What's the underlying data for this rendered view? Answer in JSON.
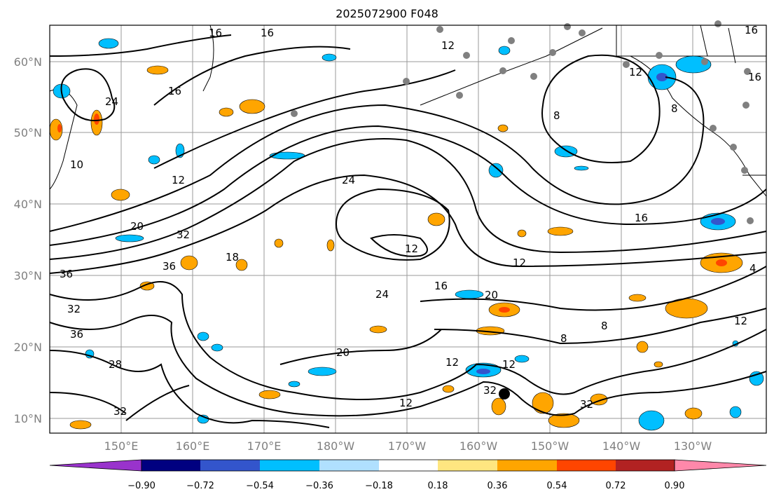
{
  "title": "2025072900 F048",
  "map": {
    "lat_labels": [
      "60°N",
      "50°N",
      "40°N",
      "30°N",
      "20°N",
      "10°N"
    ],
    "lon_labels": [
      "150°E",
      "160°E",
      "170°E",
      "180°W",
      "170°W",
      "160°W",
      "150°W",
      "140°W",
      "130°W"
    ],
    "contour_labels": [
      "16",
      "16",
      "16",
      "12",
      "12",
      "8",
      "16",
      "24",
      "12",
      "10",
      "24",
      "20",
      "32",
      "36",
      "36",
      "18",
      "28",
      "32",
      "36",
      "32",
      "12",
      "12",
      "16",
      "24",
      "20",
      "16",
      "12",
      "8",
      "8",
      "12",
      "20",
      "12",
      "32",
      "32",
      "12",
      "4",
      "8",
      "16"
    ]
  },
  "colorbar": {
    "tick_labels": [
      "−0.90",
      "−0.72",
      "−0.54",
      "−0.36",
      "−0.18",
      "0.18",
      "0.36",
      "0.54",
      "0.72",
      "0.90"
    ],
    "colors": [
      "#9933cc",
      "#000080",
      "#3355cc",
      "#00bfff",
      "#b0e0ff",
      "#ffffff",
      "#ffe680",
      "#ffa500",
      "#ff4500",
      "#b22222",
      "#ff88aa"
    ]
  },
  "legend_colors": {
    "blue_fill": "#00bfff",
    "orange_fill": "#ffa500",
    "red_fill": "#ff4500",
    "grey_marker": "#808080",
    "black_marker": "#000000"
  }
}
